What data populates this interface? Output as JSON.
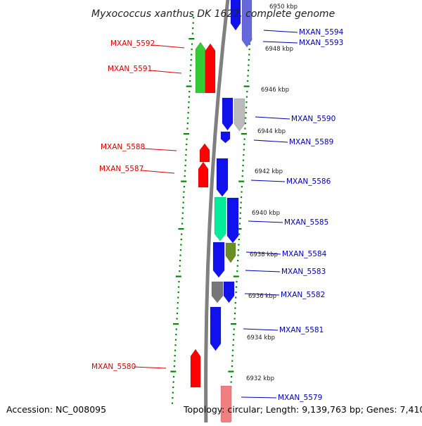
{
  "title": "Myxococcus xanthus DK 1622, complete genome",
  "footer": {
    "accession": "Accession: NC_008095",
    "summary": "Topology: circular; Length: 9,139,763 bp; Genes: 7,410"
  },
  "colors": {
    "forward_label": "#dd0000",
    "reverse_label": "#0000bb",
    "backbone": "#808080",
    "tick": "#008800"
  },
  "left_labels": [
    {
      "text": "MXAN_5592"
    },
    {
      "text": "MXAN_5591"
    },
    {
      "text": "MXAN_5588"
    },
    {
      "text": "MXAN_5587"
    },
    {
      "text": "MXAN_5580"
    }
  ],
  "right_labels": [
    {
      "text": "MXAN_5594"
    },
    {
      "text": "MXAN_5593"
    },
    {
      "text": "MXAN_5590"
    },
    {
      "text": "MXAN_5589"
    },
    {
      "text": "MXAN_5586"
    },
    {
      "text": "MXAN_5585"
    },
    {
      "text": "MXAN_5584"
    },
    {
      "text": "MXAN_5583"
    },
    {
      "text": "MXAN_5582"
    },
    {
      "text": "MXAN_5581"
    },
    {
      "text": "MXAN_5579"
    }
  ],
  "kbp_marks": [
    "6950 kbp",
    "6948 kbp",
    "6946 kbp",
    "6944 kbp",
    "6942 kbp",
    "6940 kbp",
    "6938 kbp",
    "6936 kbp",
    "6934 kbp",
    "6932 kbp"
  ],
  "genes": [
    {
      "strand": "forward",
      "color": "#33cc33"
    },
    {
      "strand": "forward",
      "color": "#ff0000"
    },
    {
      "strand": "forward",
      "color": "#ff0000"
    },
    {
      "strand": "forward",
      "color": "#ff0000"
    },
    {
      "strand": "forward",
      "color": "#ff0000"
    },
    {
      "strand": "reverse",
      "color": "#1111ee"
    },
    {
      "strand": "reverse",
      "color": "#6666dd"
    },
    {
      "strand": "reverse",
      "color": "#1111ee"
    },
    {
      "strand": "reverse",
      "color": "#bbbbbb"
    },
    {
      "strand": "reverse",
      "color": "#1111ee"
    },
    {
      "strand": "reverse",
      "color": "#1111ee"
    },
    {
      "strand": "reverse",
      "color": "#1111ee"
    },
    {
      "strand": "reverse",
      "color": "#6b8e23"
    },
    {
      "strand": "reverse",
      "color": "#00ee99"
    },
    {
      "strand": "reverse",
      "color": "#1111ee"
    },
    {
      "strand": "reverse",
      "color": "#777777"
    },
    {
      "strand": "reverse",
      "color": "#1111ee"
    },
    {
      "strand": "reverse",
      "color": "#1111ee"
    },
    {
      "strand": "reverse",
      "color": "#f08080"
    }
  ]
}
